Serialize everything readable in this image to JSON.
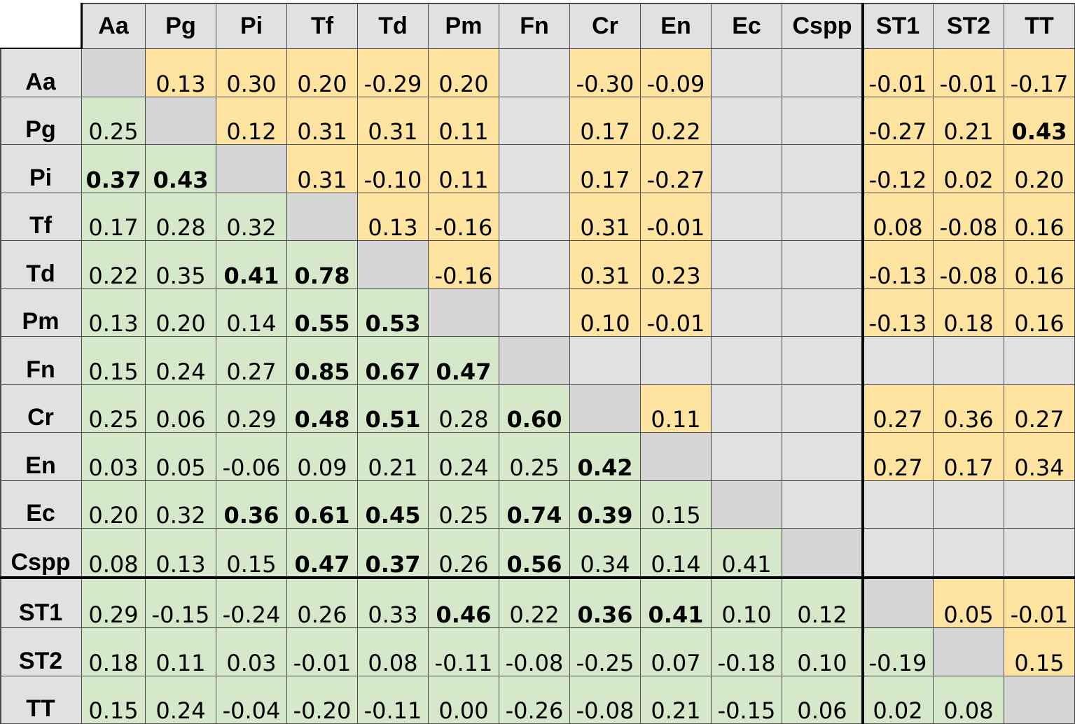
{
  "chart_data": {
    "type": "heatmap",
    "variables": [
      "Aa",
      "Pg",
      "Pi",
      "Tf",
      "Td",
      "Pm",
      "Fn",
      "Cr",
      "En",
      "Ec",
      "Cspp",
      "ST1",
      "ST2",
      "TT"
    ],
    "lower_triangle_color": "#d5e8c9",
    "upper_triangle_color": "#ffe3a1",
    "empty_cell_color": "#e1e1e1",
    "rows": [
      {
        "label": "Aa",
        "values": [
          "",
          "0.13",
          "0.30",
          "0.20",
          "-0.29",
          "0.20",
          "",
          "-0.30",
          "-0.09",
          "",
          "",
          "-0.01",
          "-0.01",
          "-0.17"
        ],
        "bold": []
      },
      {
        "label": "Pg",
        "values": [
          "0.25",
          "",
          "0.12",
          "0.31",
          "0.31",
          "0.11",
          "",
          "0.17",
          "0.22",
          "",
          "",
          "-0.27",
          "0.21",
          "0.43"
        ],
        "bold": [
          13
        ]
      },
      {
        "label": "Pi",
        "values": [
          "0.37",
          "0.43",
          "",
          "0.31",
          "-0.10",
          "0.11",
          "",
          "0.17",
          "-0.27",
          "",
          "",
          "-0.12",
          "0.02",
          "0.20"
        ],
        "bold": [
          0,
          1
        ]
      },
      {
        "label": "Tf",
        "values": [
          "0.17",
          "0.28",
          "0.32",
          "",
          "0.13",
          "-0.16",
          "",
          "0.31",
          "-0.01",
          "",
          "",
          "0.08",
          "-0.08",
          "0.16"
        ],
        "bold": []
      },
      {
        "label": "Td",
        "values": [
          "0.22",
          "0.35",
          "0.41",
          "0.78",
          "",
          "-0.16",
          "",
          "0.31",
          "0.23",
          "",
          "",
          "-0.13",
          "-0.08",
          "0.16"
        ],
        "bold": [
          2,
          3
        ]
      },
      {
        "label": "Pm",
        "values": [
          "0.13",
          "0.20",
          "0.14",
          "0.55",
          "0.53",
          "",
          "",
          "0.10",
          "-0.01",
          "",
          "",
          "-0.13",
          "0.18",
          "0.16"
        ],
        "bold": [
          3,
          4
        ]
      },
      {
        "label": "Fn",
        "values": [
          "0.15",
          "0.24",
          "0.27",
          "0.85",
          "0.67",
          "0.47",
          "",
          "",
          "",
          "",
          "",
          "",
          "",
          ""
        ],
        "bold": [
          3,
          4,
          5
        ]
      },
      {
        "label": "Cr",
        "values": [
          "0.25",
          "0.06",
          "0.29",
          "0.48",
          "0.51",
          "0.28",
          "0.60",
          "",
          "0.11",
          "",
          "",
          "0.27",
          "0.36",
          "0.27"
        ],
        "bold": [
          3,
          4,
          6
        ]
      },
      {
        "label": "En",
        "values": [
          "0.03",
          "0.05",
          "-0.06",
          "0.09",
          "0.21",
          "0.24",
          "0.25",
          "0.42",
          "",
          "",
          "",
          "0.27",
          "0.17",
          "0.34"
        ],
        "bold": [
          7
        ]
      },
      {
        "label": "Ec",
        "values": [
          "0.20",
          "0.32",
          "0.36",
          "0.61",
          "0.45",
          "0.25",
          "0.74",
          "0.39",
          "0.15",
          "",
          "",
          "",
          "",
          ""
        ],
        "bold": [
          2,
          3,
          4,
          6,
          7
        ]
      },
      {
        "label": "Cspp",
        "values": [
          "0.08",
          "0.13",
          "0.15",
          "0.47",
          "0.37",
          "0.26",
          "0.56",
          "0.34",
          "0.14",
          "0.41",
          "",
          "",
          "",
          ""
        ],
        "bold": [
          3,
          4,
          6
        ]
      },
      {
        "label": "ST1",
        "values": [
          "0.29",
          "-0.15",
          "-0.24",
          "0.26",
          "0.33",
          "0.46",
          "0.22",
          "0.36",
          "0.41",
          "0.10",
          "0.12",
          "",
          "0.05",
          "-0.01"
        ],
        "bold": [
          5,
          7,
          8
        ]
      },
      {
        "label": "ST2",
        "values": [
          "0.18",
          "0.11",
          "0.03",
          "-0.01",
          "0.08",
          "-0.11",
          "-0.08",
          "-0.25",
          "0.07",
          "-0.18",
          "0.10",
          "-0.19",
          "",
          "0.15"
        ],
        "bold": []
      },
      {
        "label": "TT",
        "values": [
          "0.15",
          "0.24",
          "-0.04",
          "-0.20",
          "-0.11",
          "0.00",
          "-0.26",
          "-0.08",
          "0.21",
          "-0.15",
          "0.06",
          "0.02",
          "0.08",
          ""
        ],
        "bold": []
      }
    ]
  }
}
